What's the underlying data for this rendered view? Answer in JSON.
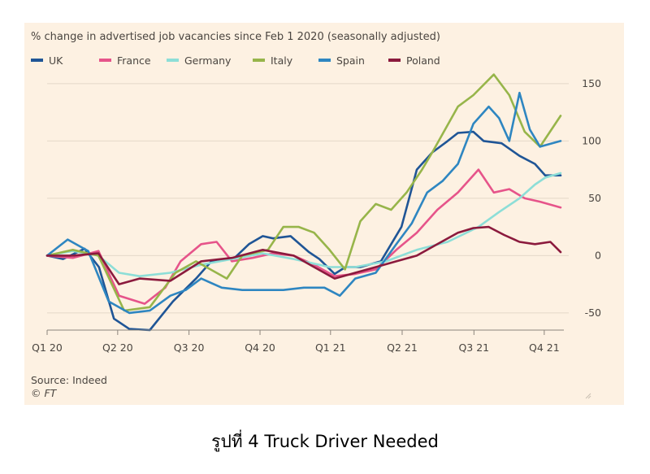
{
  "caption": "รูปที่ 4 Truck Driver Needed",
  "chart_data": {
    "type": "line",
    "title": "% change in advertised job vacancies since Feb 1 2020 (seasonally adjusted)",
    "source": "Source: Indeed",
    "logo": "© FT",
    "xlabel": "",
    "ylabel": "",
    "ylim": [
      -65,
      162
    ],
    "xlim": [
      0,
      1
    ],
    "grid": "horizontal",
    "legend_position": "top",
    "y_ticks": [
      150,
      100,
      50,
      0,
      -50
    ],
    "x_ticks": [
      {
        "label": "Q1 20",
        "t": 0.0
      },
      {
        "label": "Q2 20",
        "t": 0.1374
      },
      {
        "label": "Q3 20",
        "t": 0.2763
      },
      {
        "label": "Q4 20",
        "t": 0.4146
      },
      {
        "label": "Q1 21",
        "t": 0.5519
      },
      {
        "label": "Q2 21",
        "t": 0.6914
      },
      {
        "label": "Q3 21",
        "t": 0.8312
      },
      {
        "label": "Q4 21",
        "t": 0.9681
      }
    ],
    "series": [
      {
        "name": "UK",
        "color": "#1f5596",
        "x": [
          0.0,
          0.031,
          0.073,
          0.101,
          0.13,
          0.16,
          0.2,
          0.245,
          0.29,
          0.32,
          0.365,
          0.393,
          0.42,
          0.44,
          0.474,
          0.51,
          0.53,
          0.56,
          0.581,
          0.61,
          0.65,
          0.69,
          0.72,
          0.75,
          0.78,
          0.8,
          0.83,
          0.85,
          0.885,
          0.92,
          0.95,
          0.97,
          1.0
        ],
        "y": [
          0,
          -3,
          6,
          -10,
          -55,
          -64,
          -65,
          -40,
          -20,
          -5,
          -2,
          10,
          17,
          15,
          17,
          3,
          -3,
          -16,
          -10,
          -10,
          -5,
          25,
          75,
          90,
          100,
          107,
          108,
          100,
          98,
          87,
          80,
          70,
          70
        ]
      },
      {
        "name": "France",
        "color": "#e6548a",
        "x": [
          0.0,
          0.05,
          0.1,
          0.14,
          0.19,
          0.23,
          0.26,
          0.3,
          0.33,
          0.36,
          0.4,
          0.44,
          0.48,
          0.52,
          0.56,
          0.6,
          0.64,
          0.68,
          0.72,
          0.76,
          0.8,
          0.84,
          0.87,
          0.9,
          0.93,
          0.96,
          1.0
        ],
        "y": [
          0,
          -2,
          4,
          -35,
          -42,
          -28,
          -5,
          10,
          12,
          -5,
          -2,
          2,
          0,
          -8,
          -18,
          -16,
          -12,
          5,
          20,
          40,
          55,
          75,
          55,
          58,
          50,
          47,
          42
        ]
      },
      {
        "name": "Germany",
        "color": "#8dded7",
        "x": [
          0.0,
          0.05,
          0.1,
          0.14,
          0.18,
          0.24,
          0.3,
          0.36,
          0.42,
          0.48,
          0.55,
          0.6,
          0.66,
          0.72,
          0.78,
          0.84,
          0.88,
          0.92,
          0.95,
          0.97,
          1.0
        ],
        "y": [
          0,
          4,
          0,
          -15,
          -18,
          -15,
          -8,
          -3,
          2,
          -3,
          -10,
          -10,
          -5,
          5,
          12,
          25,
          38,
          50,
          62,
          68,
          72
        ]
      },
      {
        "name": "Italy",
        "color": "#97b54a",
        "x": [
          0.0,
          0.05,
          0.1,
          0.15,
          0.2,
          0.25,
          0.29,
          0.31,
          0.35,
          0.38,
          0.43,
          0.46,
          0.49,
          0.52,
          0.55,
          0.58,
          0.61,
          0.64,
          0.67,
          0.7,
          0.73,
          0.75,
          0.8,
          0.83,
          0.87,
          0.9,
          0.93,
          0.96,
          1.0
        ],
        "y": [
          0,
          5,
          0,
          -48,
          -45,
          -15,
          -5,
          -10,
          -20,
          0,
          5,
          25,
          25,
          20,
          5,
          -12,
          30,
          45,
          40,
          55,
          75,
          90,
          130,
          140,
          158,
          140,
          108,
          95,
          122
        ]
      },
      {
        "name": "Spain",
        "color": "#2e86c1",
        "x": [
          0.0,
          0.04,
          0.08,
          0.12,
          0.16,
          0.2,
          0.24,
          0.27,
          0.3,
          0.34,
          0.38,
          0.42,
          0.46,
          0.5,
          0.54,
          0.57,
          0.6,
          0.64,
          0.68,
          0.71,
          0.74,
          0.77,
          0.8,
          0.83,
          0.86,
          0.88,
          0.9,
          0.92,
          0.94,
          0.96,
          1.0
        ],
        "y": [
          0,
          14,
          4,
          -40,
          -50,
          -48,
          -35,
          -30,
          -20,
          -28,
          -30,
          -30,
          -30,
          -28,
          -28,
          -35,
          -20,
          -15,
          10,
          28,
          55,
          65,
          80,
          115,
          130,
          120,
          100,
          142,
          110,
          95,
          100
        ]
      },
      {
        "name": "Poland",
        "color": "#8b1a3d",
        "x": [
          0.0,
          0.05,
          0.1,
          0.14,
          0.18,
          0.24,
          0.3,
          0.36,
          0.42,
          0.48,
          0.52,
          0.56,
          0.6,
          0.64,
          0.68,
          0.72,
          0.76,
          0.8,
          0.83,
          0.86,
          0.89,
          0.92,
          0.95,
          0.98,
          1.0
        ],
        "y": [
          0,
          0,
          2,
          -25,
          -20,
          -22,
          -5,
          -2,
          5,
          0,
          -10,
          -20,
          -15,
          -10,
          -5,
          0,
          10,
          20,
          24,
          25,
          18,
          12,
          10,
          12,
          3
        ]
      }
    ]
  }
}
